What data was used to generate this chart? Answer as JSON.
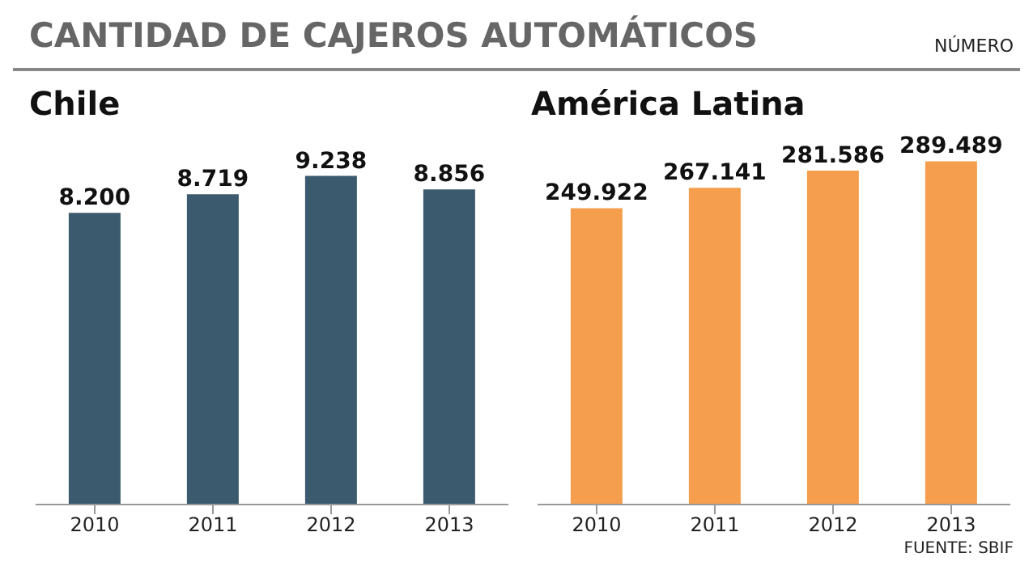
{
  "chart_data": [
    {
      "type": "bar",
      "title": "Chile",
      "categories": [
        "2010",
        "2011",
        "2012",
        "2013"
      ],
      "values": [
        8200,
        8719,
        9238,
        8856
      ],
      "value_labels": [
        "8.200",
        "8.719",
        "9.238",
        "8.856"
      ],
      "color": "#3b5a6d",
      "annotations": [
        "CANTIDAD DE CAJEROS AUTOMÁTICOS",
        "NÚMERO"
      ]
    },
    {
      "type": "bar",
      "title": "América Latina",
      "categories": [
        "2010",
        "2011",
        "2012",
        "2013"
      ],
      "values": [
        249922,
        267141,
        281586,
        289489
      ],
      "value_labels": [
        "249.922",
        "267.141",
        "281.586",
        "289.489"
      ],
      "color": "#f59f4e",
      "annotations": [
        "FUENTE: SBIF"
      ]
    }
  ]
}
